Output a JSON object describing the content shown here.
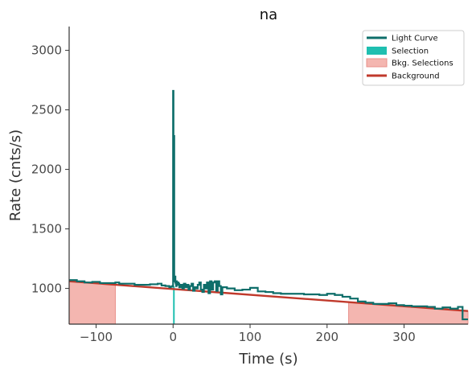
{
  "chart_data": {
    "type": "line",
    "title": "na",
    "xlabel": "Time (s)",
    "ylabel": "Rate (cnts/s)",
    "xlim": [
      -135,
      383
    ],
    "ylim": [
      700,
      3200
    ],
    "xticks": [
      -100,
      0,
      100,
      200,
      300
    ],
    "xtick_labels": [
      "−100",
      "0",
      "100",
      "200",
      "300"
    ],
    "yticks": [
      1000,
      1500,
      2000,
      2500,
      3000
    ],
    "ytick_labels": [
      "1000",
      "1500",
      "2000",
      "2500",
      "3000"
    ],
    "grid": false,
    "legend": {
      "position": "top-right",
      "entries": [
        {
          "label": "Light Curve",
          "kind": "line",
          "color": "#0e6e6a"
        },
        {
          "label": "Selection",
          "kind": "patch",
          "color": "#1fbfb0"
        },
        {
          "label": "Bkg. Selections",
          "kind": "patch",
          "color": "#f4b6b0"
        },
        {
          "label": "Background",
          "kind": "line",
          "color": "#c0392b"
        }
      ]
    },
    "light_curve": {
      "color": "#0e6e6a",
      "x": [
        -135,
        -125,
        -115,
        -105,
        -95,
        -85,
        -75,
        -70,
        -60,
        -50,
        -40,
        -30,
        -20,
        -15,
        -10,
        -5,
        -3,
        -1,
        0,
        0.5,
        1,
        1.5,
        2,
        2.5,
        3,
        3.5,
        4,
        4.5,
        5,
        6,
        7,
        8,
        10,
        12,
        14,
        16,
        18,
        20,
        22,
        24,
        26,
        28,
        30,
        32,
        34,
        36,
        38,
        40,
        42,
        44,
        46,
        48,
        50,
        52,
        54,
        56,
        58,
        60,
        62,
        64,
        70,
        80,
        90,
        100,
        110,
        120,
        130,
        140,
        150,
        160,
        170,
        180,
        190,
        200,
        210,
        220,
        230,
        240,
        250,
        260,
        270,
        280,
        290,
        300,
        310,
        320,
        330,
        340,
        350,
        360,
        370,
        376,
        383
      ],
      "y": [
        1070,
        1060,
        1050,
        1055,
        1045,
        1045,
        1050,
        1040,
        1040,
        1030,
        1030,
        1035,
        1040,
        1025,
        1020,
        1010,
        1015,
        1020,
        2660,
        1090,
        2280,
        1060,
        1080,
        1100,
        1050,
        1040,
        1020,
        1060,
        1030,
        1050,
        1040,
        1010,
        1030,
        1000,
        1040,
        1010,
        1030,
        990,
        1020,
        1040,
        980,
        1010,
        1000,
        1030,
        1050,
        990,
        970,
        1030,
        1000,
        1050,
        960,
        1060,
        990,
        1050,
        1060,
        980,
        1060,
        1020,
        950,
        1010,
        1000,
        985,
        990,
        1005,
        975,
        970,
        960,
        955,
        955,
        955,
        950,
        950,
        945,
        955,
        945,
        930,
        915,
        890,
        880,
        870,
        870,
        875,
        860,
        855,
        850,
        850,
        845,
        830,
        840,
        830,
        845,
        740,
        740
      ]
    },
    "selection": {
      "x_start": 0,
      "x_end": 2,
      "color": "#1fbfb0"
    },
    "bkg_selections": [
      {
        "x_start": -135,
        "x_end": -75,
        "color": "#f4b6b0"
      },
      {
        "x_start": 228,
        "x_end": 383,
        "color": "#f4b6b0"
      }
    ],
    "background_model": {
      "color": "#c0392b",
      "x": [
        -135,
        383
      ],
      "y": [
        1060,
        810
      ]
    }
  }
}
